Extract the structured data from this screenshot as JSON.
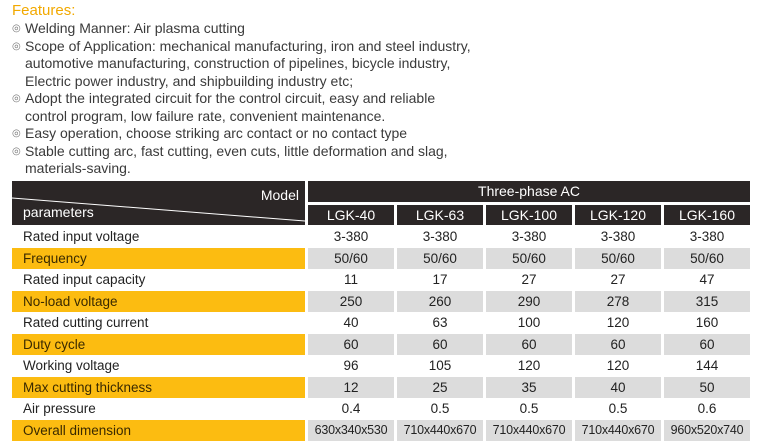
{
  "features": {
    "title": "Features:",
    "bullet_icon": "double-circle",
    "items": [
      "Welding Manner: Air plasma cutting",
      "Scope of Application: mechanical manufacturing, iron and steel industry,\nautomotive manufacturing, construction of pipelines, bicycle industry,\nElectric power industry, and shipbuilding industry etc;",
      "Adopt the integrated circuit for the control circuit, easy and reliable\ncontrol program, low failure rate, convenient maintenance.",
      "Easy operation, choose striking arc contact or no contact type",
      "Stable cutting arc, fast cutting, even cuts, little deformation and slag,\nmaterials-saving."
    ]
  },
  "table": {
    "header": {
      "model_label": "Model",
      "params_label": "parameters",
      "group_label": "Three-phase AC"
    },
    "columns": [
      "LGK-40",
      "LGK-63",
      "LGK-100",
      "LGK-120",
      "LGK-160"
    ],
    "rows": [
      {
        "label": "Rated input voltage",
        "values": [
          "3-380",
          "3-380",
          "3-380",
          "3-380",
          "3-380"
        ]
      },
      {
        "label": "Frequency",
        "values": [
          "50/60",
          "50/60",
          "50/60",
          "50/60",
          "50/60"
        ]
      },
      {
        "label": "Rated input capacity",
        "values": [
          "11",
          "17",
          "27",
          "27",
          "47"
        ]
      },
      {
        "label": "No-load voltage",
        "values": [
          "250",
          "260",
          "290",
          "278",
          "315"
        ]
      },
      {
        "label": "Rated cutting current",
        "values": [
          "40",
          "63",
          "100",
          "120",
          "160"
        ]
      },
      {
        "label": "Duty cycle",
        "values": [
          "60",
          "60",
          "60",
          "60",
          "60"
        ]
      },
      {
        "label": "Working voltage",
        "values": [
          "96",
          "105",
          "120",
          "120",
          "144"
        ]
      },
      {
        "label": "Max cutting thickness",
        "values": [
          "12",
          "25",
          "35",
          "40",
          "50"
        ]
      },
      {
        "label": "Air pressure",
        "values": [
          "0.4",
          "0.5",
          "0.5",
          "0.5",
          "0.6"
        ]
      },
      {
        "label": "Overall dimension",
        "values": [
          "630x340x530",
          "710x440x670",
          "710x440x670",
          "710x440x670",
          "960x520x740"
        ]
      }
    ],
    "colors": {
      "header_bg": "#2b2626",
      "label_highlight": "#fcbc11",
      "cell_highlight": "#dcdcdc",
      "features_title": "#f2a900"
    }
  }
}
